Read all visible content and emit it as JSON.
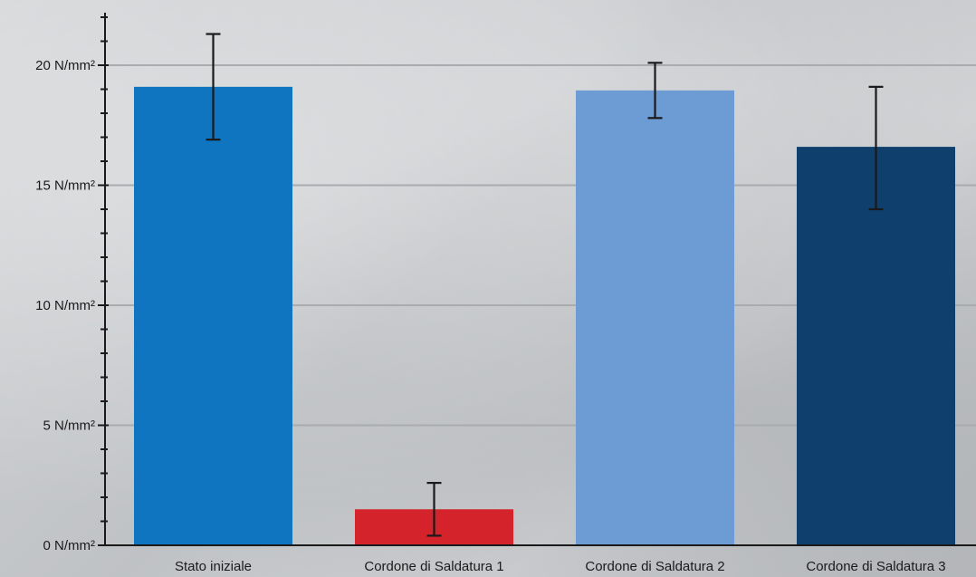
{
  "chart_data": {
    "type": "bar",
    "categories": [
      "Stato iniziale",
      "Cordone di Saldatura 1",
      "Cordone di Saldatura 2",
      "Cordone di Saldatura 3"
    ],
    "values": [
      19.1,
      1.5,
      18.95,
      16.6
    ],
    "error_low": [
      16.9,
      0.4,
      17.8,
      14.0
    ],
    "error_high": [
      21.3,
      2.6,
      20.1,
      19.1
    ],
    "ylim": [
      0,
      22
    ],
    "yticks": [
      0,
      5,
      10,
      15,
      20
    ],
    "ytick_labels": [
      "0 N/mm²",
      "5 N/mm²",
      "10 N/mm²",
      "15 N/mm²",
      "20 N/mm²"
    ],
    "grid": true,
    "colors": [
      "#1075c0",
      "#d4232b",
      "#6d9bd3",
      "#0e3f6d"
    ],
    "title": "",
    "xlabel": "",
    "ylabel": ""
  }
}
